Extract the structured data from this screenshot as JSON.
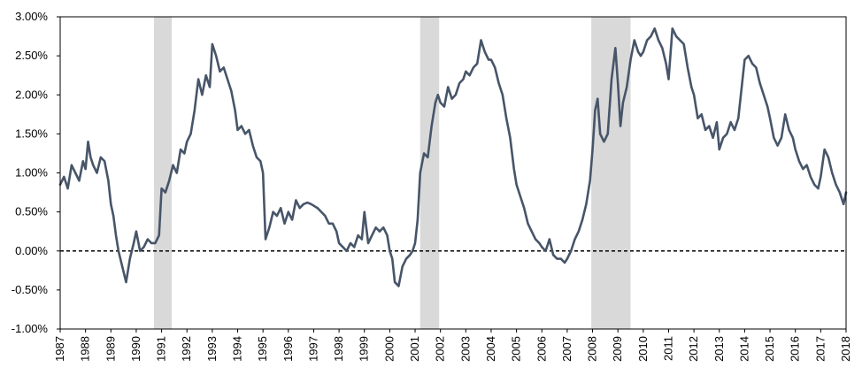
{
  "chart_data": {
    "type": "line",
    "title": "",
    "xlabel": "",
    "ylabel": "",
    "xlim": [
      1987,
      2018
    ],
    "ylim": [
      -1.0,
      3.0
    ],
    "grid": false,
    "legend": "none",
    "reference_line": {
      "y": 0.0,
      "style": "dashed"
    },
    "colors": {
      "line": "#475569",
      "recession": "#d9d9d9",
      "reference": "#000000",
      "frame": "#000000"
    },
    "y_ticks": [
      {
        "value": 3.0,
        "label": "3.00%"
      },
      {
        "value": 2.5,
        "label": "2.50%"
      },
      {
        "value": 2.0,
        "label": "2.00%"
      },
      {
        "value": 1.5,
        "label": "1.50%"
      },
      {
        "value": 1.0,
        "label": "1.00%"
      },
      {
        "value": 0.5,
        "label": "0.50%"
      },
      {
        "value": 0.0,
        "label": "0.00%"
      },
      {
        "value": -0.5,
        "label": "-0.50%"
      },
      {
        "value": -1.0,
        "label": "-1.00%"
      }
    ],
    "x_ticks": [
      {
        "value": 1987,
        "label": "1987"
      },
      {
        "value": 1988,
        "label": "1988"
      },
      {
        "value": 1989,
        "label": "1989"
      },
      {
        "value": 1990,
        "label": "1990"
      },
      {
        "value": 1991,
        "label": "1991"
      },
      {
        "value": 1992,
        "label": "1992"
      },
      {
        "value": 1993,
        "label": "1993"
      },
      {
        "value": 1994,
        "label": "1994"
      },
      {
        "value": 1995,
        "label": "1995"
      },
      {
        "value": 1996,
        "label": "1996"
      },
      {
        "value": 1997,
        "label": "1997"
      },
      {
        "value": 1998,
        "label": "1998"
      },
      {
        "value": 1999,
        "label": "1999"
      },
      {
        "value": 2000,
        "label": "2000"
      },
      {
        "value": 2001,
        "label": "2001"
      },
      {
        "value": 2002,
        "label": "2002"
      },
      {
        "value": 2003,
        "label": "2003"
      },
      {
        "value": 2004,
        "label": "2004"
      },
      {
        "value": 2005,
        "label": "2005"
      },
      {
        "value": 2006,
        "label": "2006"
      },
      {
        "value": 2007,
        "label": "2007"
      },
      {
        "value": 2008,
        "label": "2008"
      },
      {
        "value": 2009,
        "label": "2009"
      },
      {
        "value": 2010,
        "label": "2010"
      },
      {
        "value": 2011,
        "label": "2011"
      },
      {
        "value": 2012,
        "label": "2012"
      },
      {
        "value": 2013,
        "label": "2013"
      },
      {
        "value": 2014,
        "label": "2014"
      },
      {
        "value": 2015,
        "label": "2015"
      },
      {
        "value": 2016,
        "label": "2016"
      },
      {
        "value": 2017,
        "label": "2017"
      },
      {
        "value": 2018,
        "label": "2018"
      }
    ],
    "recession_bands": [
      {
        "start": 1990.7,
        "end": 1991.4
      },
      {
        "start": 2001.2,
        "end": 2001.95
      },
      {
        "start": 2007.95,
        "end": 2009.5
      }
    ],
    "series": [
      {
        "x": [
          1987.0,
          1987.15,
          1987.3,
          1987.45,
          1987.6,
          1987.75,
          1987.9,
          1988.0,
          1988.1,
          1988.2,
          1988.3,
          1988.45,
          1988.6,
          1988.75,
          1988.9,
          1989.0,
          1989.1,
          1989.2,
          1989.3,
          1989.45,
          1989.6,
          1989.75,
          1989.9,
          1990.0,
          1990.15,
          1990.3,
          1990.45,
          1990.6,
          1990.75,
          1990.9,
          1991.0,
          1991.15,
          1991.3,
          1991.45,
          1991.6,
          1991.75,
          1991.9,
          1992.0,
          1992.15,
          1992.3,
          1992.45,
          1992.6,
          1992.75,
          1992.9,
          1993.0,
          1993.15,
          1993.3,
          1993.45,
          1993.6,
          1993.75,
          1993.9,
          1994.0,
          1994.15,
          1994.3,
          1994.45,
          1994.6,
          1994.75,
          1994.9,
          1995.0,
          1995.1,
          1995.25,
          1995.4,
          1995.55,
          1995.7,
          1995.85,
          1996.0,
          1996.15,
          1996.3,
          1996.45,
          1996.6,
          1996.75,
          1996.9,
          1997.0,
          1997.15,
          1997.3,
          1997.45,
          1997.6,
          1997.75,
          1997.9,
          1998.0,
          1998.15,
          1998.3,
          1998.45,
          1998.6,
          1998.75,
          1998.9,
          1999.0,
          1999.15,
          1999.3,
          1999.45,
          1999.6,
          1999.75,
          1999.9,
          2000.0,
          2000.1,
          2000.2,
          2000.35,
          2000.5,
          2000.65,
          2000.8,
          2000.9,
          2001.0,
          2001.1,
          2001.2,
          2001.35,
          2001.5,
          2001.65,
          2001.8,
          2001.9,
          2002.0,
          2002.15,
          2002.3,
          2002.45,
          2002.6,
          2002.75,
          2002.9,
          2003.0,
          2003.15,
          2003.3,
          2003.45,
          2003.6,
          2003.75,
          2003.9,
          2004.0,
          2004.15,
          2004.3,
          2004.45,
          2004.6,
          2004.75,
          2004.9,
          2005.0,
          2005.15,
          2005.3,
          2005.45,
          2005.6,
          2005.75,
          2005.9,
          2006.0,
          2006.15,
          2006.3,
          2006.45,
          2006.6,
          2006.75,
          2006.9,
          2007.0,
          2007.15,
          2007.3,
          2007.45,
          2007.6,
          2007.75,
          2007.9,
          2008.0,
          2008.1,
          2008.2,
          2008.3,
          2008.45,
          2008.6,
          2008.75,
          2008.9,
          2009.0,
          2009.1,
          2009.2,
          2009.35,
          2009.5,
          2009.65,
          2009.8,
          2009.9,
          2010.0,
          2010.15,
          2010.3,
          2010.45,
          2010.6,
          2010.75,
          2010.9,
          2011.0,
          2011.15,
          2011.3,
          2011.45,
          2011.6,
          2011.75,
          2011.9,
          2012.0,
          2012.15,
          2012.3,
          2012.45,
          2012.6,
          2012.75,
          2012.9,
          2013.0,
          2013.15,
          2013.3,
          2013.45,
          2013.6,
          2013.75,
          2013.9,
          2014.0,
          2014.15,
          2014.3,
          2014.45,
          2014.6,
          2014.75,
          2014.9,
          2015.0,
          2015.15,
          2015.3,
          2015.45,
          2015.6,
          2015.75,
          2015.9,
          2016.0,
          2016.15,
          2016.3,
          2016.45,
          2016.6,
          2016.75,
          2016.9,
          2017.0,
          2017.15,
          2017.3,
          2017.45,
          2017.6,
          2017.75,
          2017.9,
          2018.0
        ],
        "y": [
          0.85,
          0.95,
          0.8,
          1.1,
          1.0,
          0.9,
          1.15,
          1.05,
          1.4,
          1.2,
          1.1,
          1.0,
          1.2,
          1.15,
          0.9,
          0.6,
          0.45,
          0.2,
          0.0,
          -0.2,
          -0.4,
          -0.1,
          0.1,
          0.25,
          0.0,
          0.05,
          0.15,
          0.1,
          0.1,
          0.2,
          0.8,
          0.75,
          0.9,
          1.1,
          1.0,
          1.3,
          1.25,
          1.4,
          1.5,
          1.8,
          2.2,
          2.0,
          2.25,
          2.1,
          2.65,
          2.5,
          2.3,
          2.35,
          2.2,
          2.05,
          1.8,
          1.55,
          1.6,
          1.5,
          1.55,
          1.35,
          1.2,
          1.15,
          1.0,
          0.15,
          0.3,
          0.5,
          0.45,
          0.55,
          0.35,
          0.5,
          0.4,
          0.65,
          0.55,
          0.6,
          0.62,
          0.6,
          0.58,
          0.55,
          0.5,
          0.45,
          0.35,
          0.35,
          0.25,
          0.1,
          0.05,
          0.0,
          0.1,
          0.05,
          0.2,
          0.15,
          0.5,
          0.1,
          0.2,
          0.3,
          0.25,
          0.3,
          0.2,
          0.0,
          -0.1,
          -0.4,
          -0.45,
          -0.2,
          -0.1,
          -0.05,
          0.0,
          0.1,
          0.4,
          1.0,
          1.25,
          1.2,
          1.6,
          1.9,
          2.0,
          1.9,
          1.85,
          2.1,
          1.95,
          2.0,
          2.15,
          2.2,
          2.3,
          2.25,
          2.35,
          2.4,
          2.7,
          2.55,
          2.45,
          2.45,
          2.35,
          2.15,
          2.0,
          1.7,
          1.45,
          1.05,
          0.85,
          0.7,
          0.55,
          0.35,
          0.25,
          0.15,
          0.1,
          0.05,
          0.0,
          0.15,
          -0.05,
          -0.1,
          -0.1,
          -0.15,
          -0.1,
          0.0,
          0.15,
          0.25,
          0.4,
          0.6,
          0.9,
          1.3,
          1.8,
          1.95,
          1.5,
          1.4,
          1.5,
          2.2,
          2.6,
          2.15,
          1.6,
          1.9,
          2.1,
          2.45,
          2.7,
          2.55,
          2.5,
          2.55,
          2.7,
          2.75,
          2.85,
          2.7,
          2.6,
          2.4,
          2.2,
          2.85,
          2.75,
          2.7,
          2.65,
          2.35,
          2.1,
          2.0,
          1.7,
          1.75,
          1.55,
          1.6,
          1.45,
          1.65,
          1.3,
          1.45,
          1.5,
          1.65,
          1.55,
          1.7,
          2.15,
          2.45,
          2.5,
          2.4,
          2.35,
          2.15,
          2.0,
          1.85,
          1.7,
          1.45,
          1.35,
          1.45,
          1.75,
          1.55,
          1.45,
          1.3,
          1.15,
          1.05,
          1.1,
          0.95,
          0.85,
          0.8,
          0.95,
          1.3,
          1.2,
          1.0,
          0.85,
          0.75,
          0.6,
          0.75
        ]
      }
    ]
  }
}
